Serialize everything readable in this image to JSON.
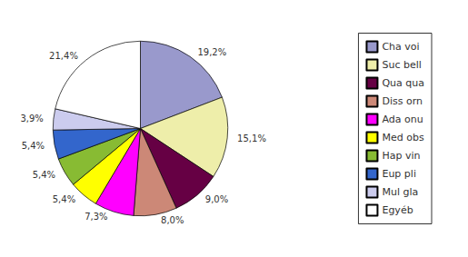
{
  "chart_data": {
    "type": "pie",
    "categories": [
      "Cha voi",
      "Suc bell",
      "Qua qua",
      "Diss orn",
      "Ada onu",
      "Med obs",
      "Hap vin",
      "Eup pli",
      "Mul gla",
      "Egyéb"
    ],
    "values": [
      19.2,
      15.1,
      9.0,
      8.0,
      7.3,
      5.4,
      5.4,
      5.4,
      3.9,
      21.4
    ],
    "value_labels": [
      "19,2%",
      "15,1%",
      "9,0%",
      "8,0%",
      "7,3%",
      "5,4%",
      "5,4%",
      "5,4%",
      "3,9%",
      "21,4%"
    ],
    "colors": [
      "#9999cc",
      "#eeeeaa",
      "#660044",
      "#cc8877",
      "#ff00ff",
      "#ffff00",
      "#88bb33",
      "#3366cc",
      "#ccccee",
      "#ffffff"
    ],
    "data_labels": true,
    "legend": "right"
  }
}
